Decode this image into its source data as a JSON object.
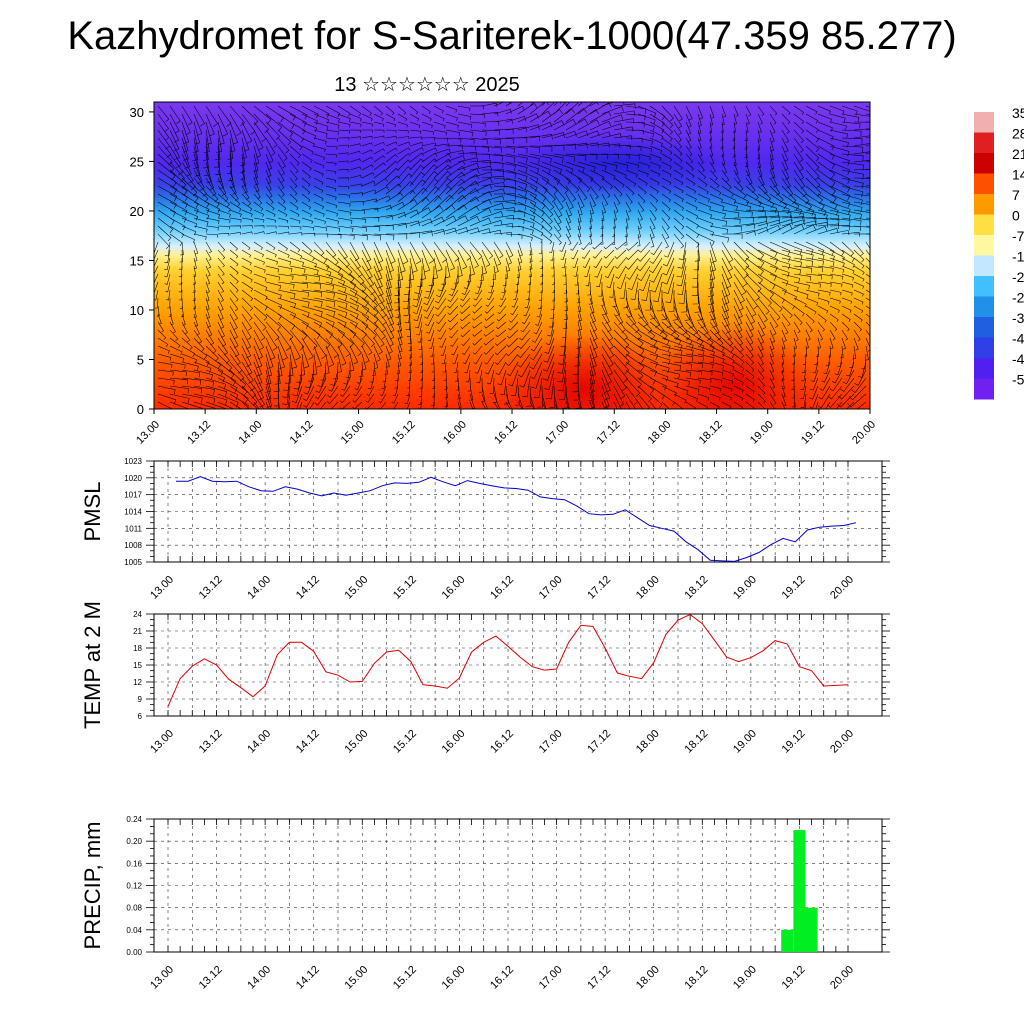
{
  "page": {
    "title": "Kazhydromet for S-Sariterek-1000(47.359 85.277)",
    "subtitle": "13 ☆☆☆☆☆☆ 2025"
  },
  "colors": {
    "pmsl_line": "#0000cc",
    "temp_line": "#dd0000",
    "precip_bar": "#00ee22",
    "wind_barb": "#000000"
  },
  "chart_data": [
    {
      "id": "cross_section",
      "type": "heatmap",
      "title": "",
      "xlabel": "",
      "ylabel": "",
      "x_ticks": [
        "13.00",
        "13.12",
        "14.00",
        "14.12",
        "15.00",
        "15.12",
        "16.00",
        "16.12",
        "17.00",
        "17.12",
        "18.00",
        "18.12",
        "19.00",
        "19.12",
        "20.00"
      ],
      "y_ticks": [
        "0",
        "5",
        "10",
        "15",
        "20",
        "25",
        "30"
      ],
      "ylim": [
        0,
        31
      ],
      "overlay": "wind barbs",
      "colorbar_labels": [
        "35",
        "28",
        "21",
        "14",
        "7",
        "0",
        "-7",
        "-1",
        "-2",
        "-2",
        "-3",
        "-4",
        "-4",
        "-5"
      ],
      "colorbar_colors": [
        "#f0b0b0",
        "#e02020",
        "#cc0000",
        "#ff5000",
        "#ff9a00",
        "#ffe040",
        "#fff8a0",
        "#c0e8ff",
        "#40c0ff",
        "#2090e8",
        "#2060e0",
        "#3040e8",
        "#5020f0",
        "#7020f0"
      ]
    },
    {
      "id": "pmsl",
      "type": "line",
      "ylabel": "PMSL",
      "xlabel": "",
      "x_ticks": [
        "13.00",
        "13.12",
        "14.00",
        "14.12",
        "15.00",
        "15.12",
        "16.00",
        "16.12",
        "17.00",
        "17.12",
        "18.00",
        "18.12",
        "19.00",
        "19.12",
        "20.00"
      ],
      "y_ticks": [
        "1005",
        "1008",
        "1011",
        "1014",
        "1017",
        "1020",
        "1023"
      ],
      "ylim": [
        1005,
        1023
      ],
      "grid": true,
      "series": [
        {
          "values": [
            1019.4,
            1019.4,
            1020.2,
            1019.4,
            1019.3,
            1019.4,
            1018.4,
            1017.7,
            1017.6,
            1018.4,
            1018.0,
            1017.3,
            1016.8,
            1017.3,
            1016.9,
            1017.3,
            1017.7,
            1018.6,
            1019.1,
            1019.0,
            1019.2,
            1020.1,
            1019.3,
            1018.6,
            1019.5,
            1019.0,
            1018.6,
            1018.2,
            1018.1,
            1017.8,
            1016.6,
            1016.3,
            1016.1,
            1015.0,
            1013.6,
            1013.4,
            1013.5,
            1014.3,
            1012.9,
            1011.5,
            1011.0,
            1010.5,
            1008.6,
            1007.2,
            1005.3,
            1005.2,
            1005.1,
            1005.8,
            1006.7,
            1008.1,
            1009.2,
            1008.6,
            1010.7,
            1011.2,
            1011.4,
            1011.5,
            1012.0
          ]
        }
      ]
    },
    {
      "id": "temp",
      "type": "line",
      "ylabel": "TEMP at 2 M",
      "xlabel": "",
      "x_ticks": [
        "13.00",
        "13.12",
        "14.00",
        "14.12",
        "15.00",
        "15.12",
        "16.00",
        "16.12",
        "17.00",
        "17.12",
        "18.00",
        "18.12",
        "19.00",
        "19.12",
        "20.00"
      ],
      "y_ticks": [
        "6",
        "9",
        "12",
        "15",
        "18",
        "21",
        "24"
      ],
      "ylim": [
        6,
        24
      ],
      "grid": true,
      "series": [
        {
          "values": [
            7.7,
            12.6,
            14.8,
            16.1,
            15.0,
            12.5,
            11.0,
            9.4,
            11.3,
            16.8,
            19.0,
            19.0,
            17.4,
            13.8,
            13.2,
            12.0,
            12.1,
            15.3,
            17.3,
            17.6,
            15.6,
            11.5,
            11.3,
            10.9,
            12.7,
            17.3,
            19.0,
            20.1,
            18.3,
            16.4,
            14.7,
            14.1,
            14.3,
            19.0,
            22.0,
            21.8,
            18.0,
            13.6,
            13.0,
            12.6,
            15.4,
            20.4,
            22.9,
            23.9,
            22.3,
            19.4,
            16.4,
            15.6,
            16.3,
            17.5,
            19.3,
            18.7,
            14.7,
            14.0,
            11.3,
            11.4,
            11.5
          ]
        }
      ]
    },
    {
      "id": "precip",
      "type": "bar",
      "ylabel": "PRECIP, mm",
      "xlabel": "",
      "x_ticks": [
        "13.00",
        "13.12",
        "14.00",
        "14.12",
        "15.00",
        "15.12",
        "16.00",
        "16.12",
        "17.00",
        "17.12",
        "18.00",
        "18.12",
        "19.00",
        "19.12",
        "20.00"
      ],
      "y_ticks": [
        "0.00",
        "0.04",
        "0.08",
        "0.12",
        "0.16",
        "0.20",
        "0.24"
      ],
      "ylim": [
        0,
        0.24
      ],
      "grid": true,
      "bars": [
        {
          "x_hours": 153,
          "value": 0.04
        },
        {
          "x_hours": 156,
          "value": 0.22
        },
        {
          "x_hours": 159,
          "value": 0.08
        }
      ]
    }
  ]
}
